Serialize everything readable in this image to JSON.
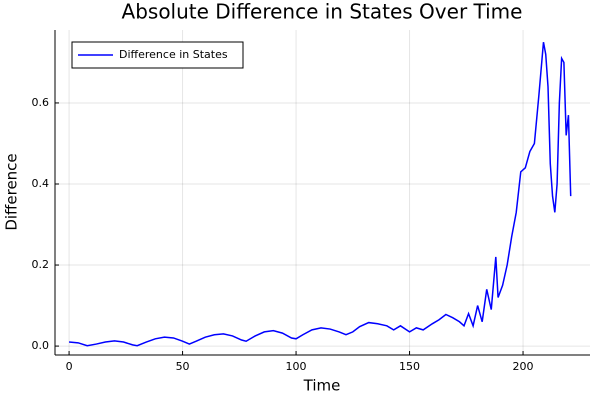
{
  "chart_data": {
    "type": "line",
    "title": "Absolute Difference in States Over Time",
    "xlabel": "Time",
    "ylabel": "Difference",
    "x": [
      0,
      4,
      8,
      12,
      16,
      20,
      24,
      28,
      30,
      34,
      38,
      42,
      46,
      50,
      53,
      56,
      60,
      64,
      68,
      72,
      76,
      78,
      82,
      86,
      90,
      94,
      98,
      100,
      103,
      107,
      111,
      115,
      119,
      122,
      125,
      128,
      132,
      136,
      140,
      143,
      146,
      150,
      153,
      156,
      160,
      163,
      166,
      169,
      172,
      174,
      176,
      178,
      180,
      182,
      184,
      186,
      188,
      189,
      191,
      193,
      195,
      197,
      199,
      201,
      203,
      205,
      207,
      209,
      210,
      211,
      212,
      213,
      214,
      215,
      216,
      217,
      218,
      219,
      220,
      221
    ],
    "series": [
      {
        "name": "Difference in States",
        "color": "#0000ff",
        "values": [
          0.01,
          0.008,
          0.001,
          0.005,
          0.01,
          0.013,
          0.01,
          0.003,
          0.001,
          0.01,
          0.018,
          0.022,
          0.02,
          0.012,
          0.005,
          0.012,
          0.022,
          0.028,
          0.03,
          0.025,
          0.015,
          0.012,
          0.025,
          0.035,
          0.038,
          0.032,
          0.02,
          0.018,
          0.028,
          0.04,
          0.045,
          0.042,
          0.035,
          0.028,
          0.035,
          0.048,
          0.058,
          0.055,
          0.05,
          0.04,
          0.05,
          0.035,
          0.045,
          0.04,
          0.055,
          0.065,
          0.078,
          0.07,
          0.06,
          0.05,
          0.08,
          0.05,
          0.1,
          0.06,
          0.14,
          0.09,
          0.22,
          0.12,
          0.15,
          0.2,
          0.27,
          0.33,
          0.43,
          0.44,
          0.48,
          0.5,
          0.62,
          0.75,
          0.72,
          0.64,
          0.45,
          0.37,
          0.33,
          0.4,
          0.6,
          0.71,
          0.7,
          0.52,
          0.57,
          0.37
        ]
      }
    ],
    "xlim": [
      -6.2,
      229.5
    ],
    "ylim": [
      -0.022,
      0.78
    ],
    "xticks": [
      0,
      50,
      100,
      150,
      200
    ],
    "yticks": [
      {
        "value": 0,
        "label": "0.0"
      },
      {
        "value": 0.2,
        "label": "0.2"
      },
      {
        "value": 0.4,
        "label": "0.4"
      },
      {
        "value": 0.6,
        "label": "0.6"
      }
    ],
    "grid": true,
    "legend": "top-left"
  }
}
